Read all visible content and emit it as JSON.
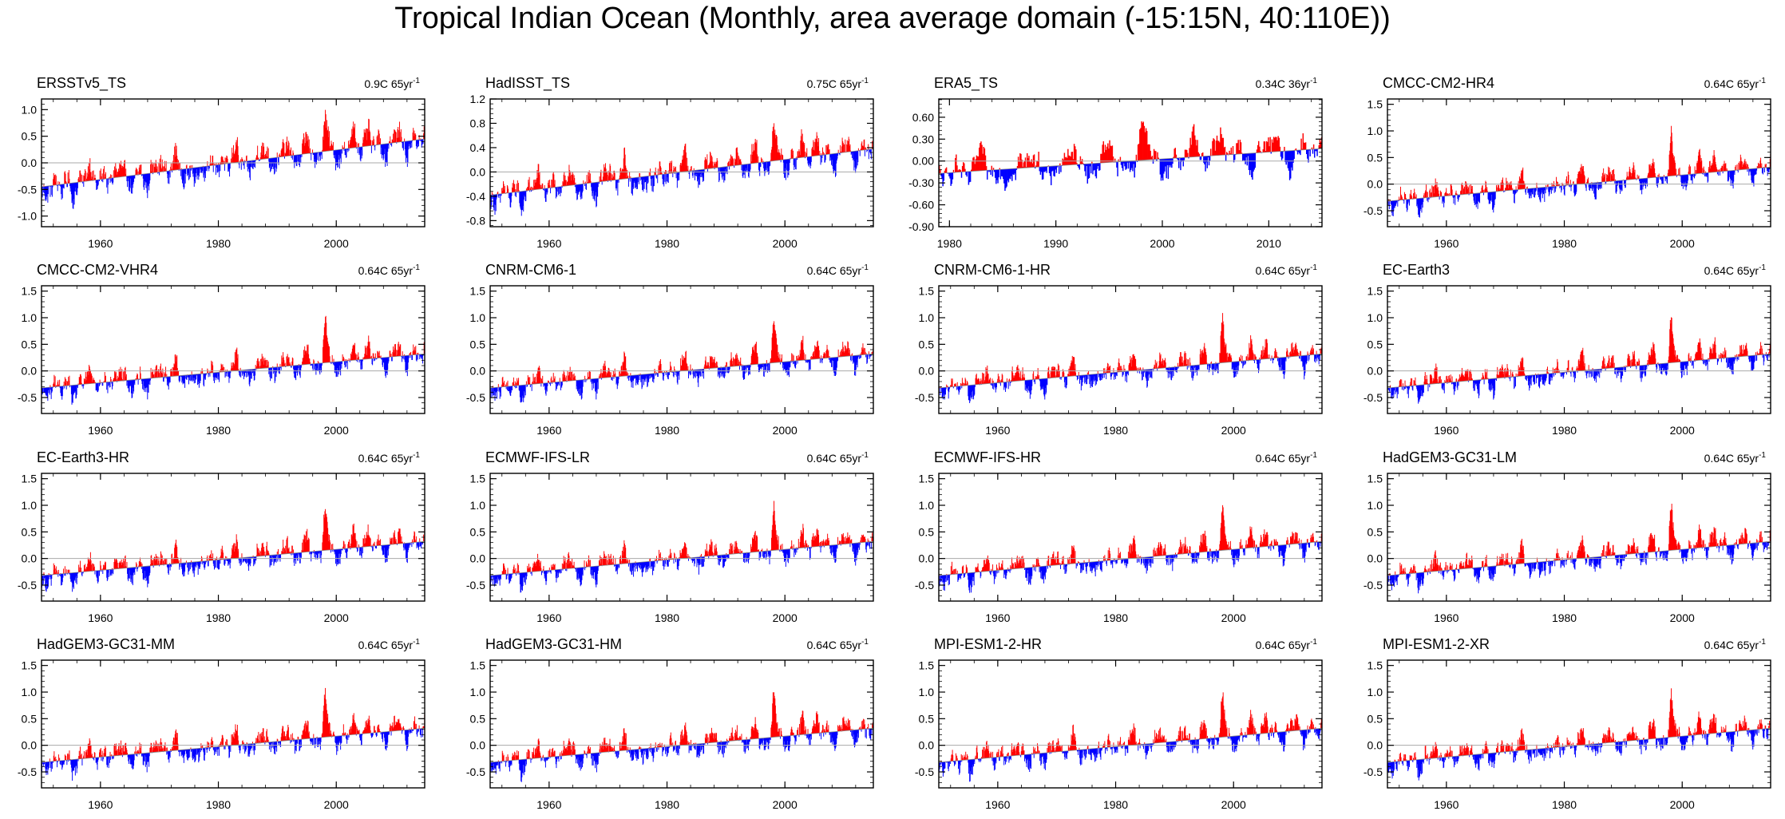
{
  "title": "Tropical Indian Ocean (Monthly, area average domain (-15:15N, 40:110E))",
  "colors": {
    "positive": "#ff0000",
    "negative": "#0000ff",
    "frame": "#000000",
    "zero_line": "#aaaaaa"
  },
  "chart_data": [
    {
      "type": "bar",
      "name": "ERSSTv5_TS",
      "trend": "0.9C 65yr",
      "trend_unit_exp": "-1",
      "x_range": [
        1950,
        2015
      ],
      "ylim": [
        -1.2,
        1.2
      ],
      "yticks": [
        -1.0,
        -0.5,
        0.0,
        0.5,
        1.0
      ],
      "ytick_labels": [
        "-1.0",
        "-0.5",
        "0.0",
        "0.5",
        "1.0"
      ],
      "xticks": [
        1960,
        1980,
        2000
      ],
      "xtick_labels": [
        "1960",
        "1980",
        "2000"
      ],
      "baseline": 0.0,
      "trend_line": {
        "start": -0.45,
        "end": 0.45
      },
      "variability": {
        "amp": 0.32,
        "enso_amp": 0.28,
        "spike_1997": 0.55
      }
    },
    {
      "type": "bar",
      "name": "HadISST_TS",
      "trend": "0.75C 65yr",
      "trend_unit_exp": "-1",
      "x_range": [
        1950,
        2015
      ],
      "ylim": [
        -0.9,
        1.2
      ],
      "yticks": [
        -0.8,
        -0.4,
        0.0,
        0.4,
        0.8,
        1.2
      ],
      "ytick_labels": [
        "-0.8",
        "-0.4",
        "0.0",
        "0.4",
        "0.8",
        "1.2"
      ],
      "xticks": [
        1960,
        1980,
        2000
      ],
      "xtick_labels": [
        "1960",
        "1980",
        "2000"
      ],
      "baseline": 0.0,
      "trend_line": {
        "start": -0.38,
        "end": 0.38
      },
      "variability": {
        "amp": 0.28,
        "enso_amp": 0.25,
        "spike_1997": 0.5
      }
    },
    {
      "type": "bar",
      "name": "ERA5_TS",
      "trend": "0.34C 36yr",
      "trend_unit_exp": "-1",
      "x_range": [
        1979,
        2015
      ],
      "ylim": [
        -0.9,
        0.85
      ],
      "yticks": [
        -0.9,
        -0.6,
        -0.3,
        0.0,
        0.3,
        0.6
      ],
      "ytick_labels": [
        "-0.90",
        "-0.60",
        "-0.30",
        "0.00",
        "0.30",
        "0.60"
      ],
      "xticks": [
        1980,
        1990,
        2000,
        2010
      ],
      "xtick_labels": [
        "1980",
        "1990",
        "2000",
        "2010"
      ],
      "baseline": 0.0,
      "trend_line": {
        "start": -0.17,
        "end": 0.17
      },
      "variability": {
        "amp": 0.25,
        "enso_amp": 0.22,
        "spike_1997": 0.5
      }
    },
    {
      "type": "bar",
      "name": "CMCC-CM2-HR4",
      "trend": "0.64C 65yr",
      "trend_unit_exp": "-1",
      "x_range": [
        1950,
        2015
      ],
      "ylim": [
        -0.8,
        1.6
      ],
      "yticks": [
        -0.5,
        0.0,
        0.5,
        1.0,
        1.5
      ],
      "ytick_labels": [
        "-0.5",
        "0.0",
        "0.5",
        "1.0",
        "1.5"
      ],
      "xticks": [
        1960,
        1980,
        2000
      ],
      "xtick_labels": [
        "1960",
        "1980",
        "2000"
      ],
      "baseline": 0.0,
      "trend_line": {
        "start": -0.32,
        "end": 0.32
      },
      "variability": {
        "amp": 0.26,
        "enso_amp": 0.24,
        "spike_1997": 0.75
      }
    },
    {
      "type": "bar",
      "name": "CMCC-CM2-VHR4",
      "trend": "0.64C 65yr",
      "trend_unit_exp": "-1",
      "x_range": [
        1950,
        2015
      ],
      "ylim": [
        -0.8,
        1.6
      ],
      "yticks": [
        -0.5,
        0.0,
        0.5,
        1.0,
        1.5
      ],
      "ytick_labels": [
        "-0.5",
        "0.0",
        "0.5",
        "1.0",
        "1.5"
      ],
      "xticks": [
        1960,
        1980,
        2000
      ],
      "xtick_labels": [
        "1960",
        "1980",
        "2000"
      ],
      "baseline": 0.0,
      "trend_line": {
        "start": -0.32,
        "end": 0.32
      },
      "variability": {
        "amp": 0.26,
        "enso_amp": 0.24,
        "spike_1997": 0.75
      }
    },
    {
      "type": "bar",
      "name": "CNRM-CM6-1",
      "trend": "0.64C 65yr",
      "trend_unit_exp": "-1",
      "x_range": [
        1950,
        2015
      ],
      "ylim": [
        -0.8,
        1.6
      ],
      "yticks": [
        -0.5,
        0.0,
        0.5,
        1.0,
        1.5
      ],
      "ytick_labels": [
        "-0.5",
        "0.0",
        "0.5",
        "1.0",
        "1.5"
      ],
      "xticks": [
        1960,
        1980,
        2000
      ],
      "xtick_labels": [
        "1960",
        "1980",
        "2000"
      ],
      "baseline": 0.0,
      "trend_line": {
        "start": -0.32,
        "end": 0.32
      },
      "variability": {
        "amp": 0.26,
        "enso_amp": 0.24,
        "spike_1997": 0.75
      }
    },
    {
      "type": "bar",
      "name": "CNRM-CM6-1-HR",
      "trend": "0.64C 65yr",
      "trend_unit_exp": "-1",
      "x_range": [
        1950,
        2015
      ],
      "ylim": [
        -0.8,
        1.6
      ],
      "yticks": [
        -0.5,
        0.0,
        0.5,
        1.0,
        1.5
      ],
      "ytick_labels": [
        "-0.5",
        "0.0",
        "0.5",
        "1.0",
        "1.5"
      ],
      "xticks": [
        1960,
        1980,
        2000
      ],
      "xtick_labels": [
        "1960",
        "1980",
        "2000"
      ],
      "baseline": 0.0,
      "trend_line": {
        "start": -0.32,
        "end": 0.32
      },
      "variability": {
        "amp": 0.26,
        "enso_amp": 0.24,
        "spike_1997": 0.75
      }
    },
    {
      "type": "bar",
      "name": "EC-Earth3",
      "trend": "0.64C 65yr",
      "trend_unit_exp": "-1",
      "x_range": [
        1950,
        2015
      ],
      "ylim": [
        -0.8,
        1.6
      ],
      "yticks": [
        -0.5,
        0.0,
        0.5,
        1.0,
        1.5
      ],
      "ytick_labels": [
        "-0.5",
        "0.0",
        "0.5",
        "1.0",
        "1.5"
      ],
      "xticks": [
        1960,
        1980,
        2000
      ],
      "xtick_labels": [
        "1960",
        "1980",
        "2000"
      ],
      "baseline": 0.0,
      "trend_line": {
        "start": -0.32,
        "end": 0.32
      },
      "variability": {
        "amp": 0.26,
        "enso_amp": 0.24,
        "spike_1997": 0.75
      }
    },
    {
      "type": "bar",
      "name": "EC-Earth3-HR",
      "trend": "0.64C 65yr",
      "trend_unit_exp": "-1",
      "x_range": [
        1950,
        2015
      ],
      "ylim": [
        -0.8,
        1.6
      ],
      "yticks": [
        -0.5,
        0.0,
        0.5,
        1.0,
        1.5
      ],
      "ytick_labels": [
        "-0.5",
        "0.0",
        "0.5",
        "1.0",
        "1.5"
      ],
      "xticks": [
        1960,
        1980,
        2000
      ],
      "xtick_labels": [
        "1960",
        "1980",
        "2000"
      ],
      "baseline": 0.0,
      "trend_line": {
        "start": -0.32,
        "end": 0.32
      },
      "variability": {
        "amp": 0.26,
        "enso_amp": 0.24,
        "spike_1997": 0.75
      }
    },
    {
      "type": "bar",
      "name": "ECMWF-IFS-LR",
      "trend": "0.64C 65yr",
      "trend_unit_exp": "-1",
      "x_range": [
        1950,
        2015
      ],
      "ylim": [
        -0.8,
        1.6
      ],
      "yticks": [
        -0.5,
        0.0,
        0.5,
        1.0,
        1.5
      ],
      "ytick_labels": [
        "-0.5",
        "0.0",
        "0.5",
        "1.0",
        "1.5"
      ],
      "xticks": [
        1960,
        1980,
        2000
      ],
      "xtick_labels": [
        "1960",
        "1980",
        "2000"
      ],
      "baseline": 0.0,
      "trend_line": {
        "start": -0.32,
        "end": 0.32
      },
      "variability": {
        "amp": 0.26,
        "enso_amp": 0.24,
        "spike_1997": 0.75
      }
    },
    {
      "type": "bar",
      "name": "ECMWF-IFS-HR",
      "trend": "0.64C 65yr",
      "trend_unit_exp": "-1",
      "x_range": [
        1950,
        2015
      ],
      "ylim": [
        -0.8,
        1.6
      ],
      "yticks": [
        -0.5,
        0.0,
        0.5,
        1.0,
        1.5
      ],
      "ytick_labels": [
        "-0.5",
        "0.0",
        "0.5",
        "1.0",
        "1.5"
      ],
      "xticks": [
        1960,
        1980,
        2000
      ],
      "xtick_labels": [
        "1960",
        "1980",
        "2000"
      ],
      "baseline": 0.0,
      "trend_line": {
        "start": -0.32,
        "end": 0.32
      },
      "variability": {
        "amp": 0.26,
        "enso_amp": 0.24,
        "spike_1997": 0.75
      }
    },
    {
      "type": "bar",
      "name": "HadGEM3-GC31-LM",
      "trend": "0.64C 65yr",
      "trend_unit_exp": "-1",
      "x_range": [
        1950,
        2015
      ],
      "ylim": [
        -0.8,
        1.6
      ],
      "yticks": [
        -0.5,
        0.0,
        0.5,
        1.0,
        1.5
      ],
      "ytick_labels": [
        "-0.5",
        "0.0",
        "0.5",
        "1.0",
        "1.5"
      ],
      "xticks": [
        1960,
        1980,
        2000
      ],
      "xtick_labels": [
        "1960",
        "1980",
        "2000"
      ],
      "baseline": 0.0,
      "trend_line": {
        "start": -0.32,
        "end": 0.32
      },
      "variability": {
        "amp": 0.26,
        "enso_amp": 0.24,
        "spike_1997": 0.75
      }
    },
    {
      "type": "bar",
      "name": "HadGEM3-GC31-MM",
      "trend": "0.64C 65yr",
      "trend_unit_exp": "-1",
      "x_range": [
        1950,
        2015
      ],
      "ylim": [
        -0.8,
        1.6
      ],
      "yticks": [
        -0.5,
        0.0,
        0.5,
        1.0,
        1.5
      ],
      "ytick_labels": [
        "-0.5",
        "0.0",
        "0.5",
        "1.0",
        "1.5"
      ],
      "xticks": [
        1960,
        1980,
        2000
      ],
      "xtick_labels": [
        "1960",
        "1980",
        "2000"
      ],
      "baseline": 0.0,
      "trend_line": {
        "start": -0.32,
        "end": 0.32
      },
      "variability": {
        "amp": 0.26,
        "enso_amp": 0.24,
        "spike_1997": 0.75
      }
    },
    {
      "type": "bar",
      "name": "HadGEM3-GC31-HM",
      "trend": "0.64C 65yr",
      "trend_unit_exp": "-1",
      "x_range": [
        1950,
        2015
      ],
      "ylim": [
        -0.8,
        1.6
      ],
      "yticks": [
        -0.5,
        0.0,
        0.5,
        1.0,
        1.5
      ],
      "ytick_labels": [
        "-0.5",
        "0.0",
        "0.5",
        "1.0",
        "1.5"
      ],
      "xticks": [
        1960,
        1980,
        2000
      ],
      "xtick_labels": [
        "1960",
        "1980",
        "2000"
      ],
      "baseline": 0.0,
      "trend_line": {
        "start": -0.32,
        "end": 0.32
      },
      "variability": {
        "amp": 0.26,
        "enso_amp": 0.24,
        "spike_1997": 0.75
      }
    },
    {
      "type": "bar",
      "name": "MPI-ESM1-2-HR",
      "trend": "0.64C 65yr",
      "trend_unit_exp": "-1",
      "x_range": [
        1950,
        2015
      ],
      "ylim": [
        -0.8,
        1.6
      ],
      "yticks": [
        -0.5,
        0.0,
        0.5,
        1.0,
        1.5
      ],
      "ytick_labels": [
        "-0.5",
        "0.0",
        "0.5",
        "1.0",
        "1.5"
      ],
      "xticks": [
        1960,
        1980,
        2000
      ],
      "xtick_labels": [
        "1960",
        "1980",
        "2000"
      ],
      "baseline": 0.0,
      "trend_line": {
        "start": -0.32,
        "end": 0.32
      },
      "variability": {
        "amp": 0.26,
        "enso_amp": 0.24,
        "spike_1997": 0.75
      }
    },
    {
      "type": "bar",
      "name": "MPI-ESM1-2-XR",
      "trend": "0.64C 65yr",
      "trend_unit_exp": "-1",
      "x_range": [
        1950,
        2015
      ],
      "ylim": [
        -0.8,
        1.6
      ],
      "yticks": [
        -0.5,
        0.0,
        0.5,
        1.0,
        1.5
      ],
      "ytick_labels": [
        "-0.5",
        "0.0",
        "0.5",
        "1.0",
        "1.5"
      ],
      "xticks": [
        1960,
        1980,
        2000
      ],
      "xtick_labels": [
        "1960",
        "1980",
        "2000"
      ],
      "baseline": 0.0,
      "trend_line": {
        "start": -0.32,
        "end": 0.32
      },
      "variability": {
        "amp": 0.26,
        "enso_amp": 0.24,
        "spike_1997": 0.75
      }
    }
  ]
}
